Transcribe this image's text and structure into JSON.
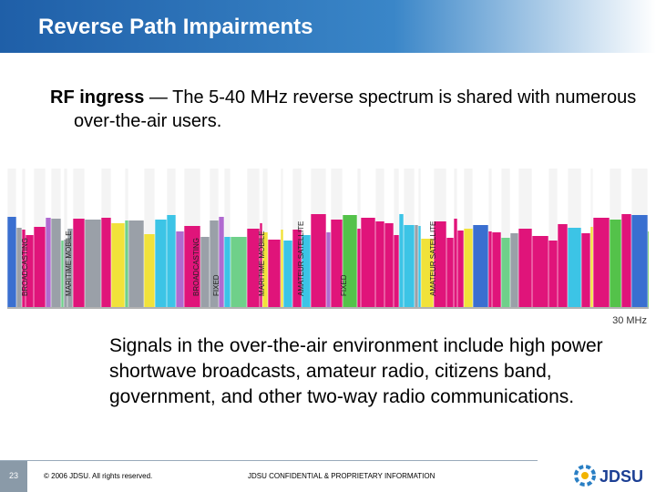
{
  "header": {
    "title": "Reverse Path Impairments"
  },
  "bullet": {
    "term": "RF ingress",
    "text": "— The 5-40 MHz reverse spectrum is shared with numerous over-the-air users."
  },
  "chart": {
    "labels": [
      "BROADCASTING",
      "MARITIME MOBILE",
      "BROADCASTING",
      "FIXED",
      "MARITIME MOBILE",
      "AMATEUR SATELLITE",
      "FIXED",
      "AMATEUR SATELLITE"
    ],
    "end_label": "30 MHz"
  },
  "body": "Signals in the over-the-air environment include high power shortwave broadcasts, amateur radio, citizens band, government, and other two-way radio communications.",
  "footer": {
    "page_number": "23",
    "copyright": "© 2006 JDSU. All rights reserved.",
    "confidential": "JDSU CONFIDENTIAL & PROPRIETARY INFORMATION",
    "logo": "JDSU"
  }
}
